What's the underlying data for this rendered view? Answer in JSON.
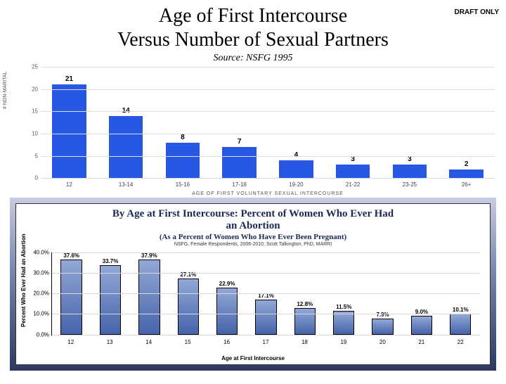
{
  "watermark": "DRAFT ONLY",
  "title_line1": "Age of First Intercourse",
  "title_line2": "Versus Number of Sexual Partners",
  "source_line": "Source: NSFG 1995",
  "chart1": {
    "type": "bar",
    "y_axis_label": "# NON-MARITAL",
    "x_axis_label": "AGE OF FIRST VOLUNTARY SEXUAL INTERCOURSE",
    "ylim": [
      0,
      25
    ],
    "ytick_step": 5,
    "yticks": [
      "0",
      "5",
      "10",
      "15",
      "20",
      "25"
    ],
    "categories": [
      "12",
      "13-14",
      "15-16",
      "17-18",
      "19-20",
      "21-22",
      "23-25",
      "26+"
    ],
    "values": [
      21,
      14,
      8,
      7,
      4,
      3,
      3,
      2
    ],
    "bar_color": "#2758e4",
    "grid_color": "#dcdcdc",
    "background_color": "#ffffff",
    "label_fontsize": 8,
    "value_fontsize": 10,
    "bar_width": 0.6
  },
  "chart2": {
    "type": "bar",
    "title_line1": "By Age at First Intercourse: Percent of Women Who Ever Had",
    "title_line2": "an Abortion",
    "subtitle": "(As a Percent of Women Who Have Ever Been Pregnant)",
    "note": "NSFG, Female Respondents, 2006-2010; Scott Talkington, PhD; MARRI",
    "y_axis_label": "Percent Who Ever Had an Abortion",
    "x_axis_label": "Age at First Intercourse",
    "ylim": [
      0,
      40
    ],
    "ytick_step": 10,
    "yticks": [
      "0.0%",
      "10.0%",
      "20.0%",
      "30.0%",
      "40.0%"
    ],
    "categories": [
      "12",
      "13",
      "14",
      "15",
      "16",
      "17",
      "18",
      "19",
      "20",
      "21",
      "22"
    ],
    "values": [
      37.6,
      33.7,
      37.9,
      27.1,
      22.9,
      17.1,
      12.8,
      11.5,
      7.9,
      9.0,
      10.1
    ],
    "bar_fill_top": "#93a8d6",
    "bar_fill_bottom": "#4564ab",
    "bar_border": "#000000",
    "grid_color": "#d8d8d8",
    "background_color": "#ffffff",
    "frame_gradient_top": "#c6cde0",
    "frame_gradient_bottom": "#2c3860",
    "title_color": "#1a2955",
    "title_fontsize": 15,
    "subtitle_fontsize": 11,
    "note_fontsize": 7,
    "label_fontsize": 8,
    "bar_width": 0.55
  }
}
